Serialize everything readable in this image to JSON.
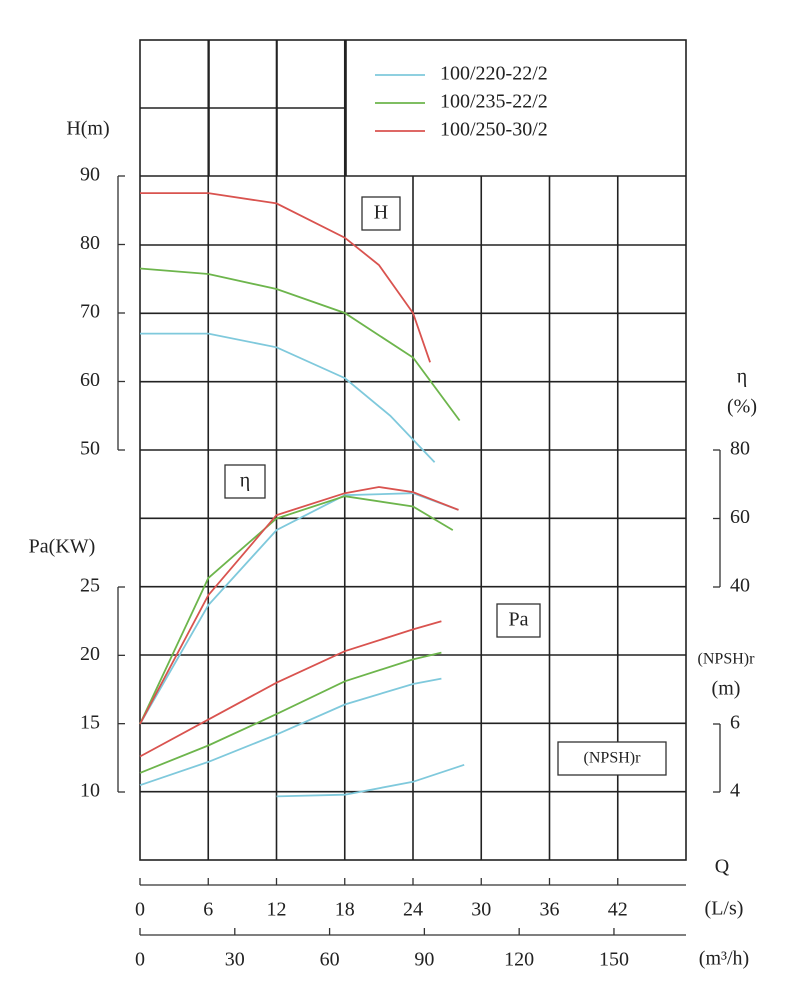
{
  "chart_data": {
    "type": "line",
    "grid": true,
    "x_label": "Q",
    "x_unit": "(L/s)",
    "xlim": [
      0,
      48
    ],
    "xticks": [
      0,
      6,
      12,
      18,
      24,
      30,
      36,
      42
    ],
    "x2_unit": "(m³/h)",
    "x2lim": [
      0,
      172.8
    ],
    "x2ticks": [
      0,
      30,
      60,
      90,
      120,
      150
    ],
    "panels": {
      "H": {
        "label": "H",
        "axis_label": "H(m)",
        "side": "left",
        "ylim": [
          50,
          90
        ],
        "yticks": [
          50,
          60,
          70,
          80,
          90
        ]
      },
      "eta": {
        "label": "η",
        "axis_label": "η",
        "axis_unit": "(%)",
        "side": "right",
        "ylim": [
          40,
          80
        ],
        "yticks": [
          40,
          60,
          80
        ]
      },
      "Pa": {
        "label": "Pa",
        "axis_label": "Pa(KW)",
        "side": "left",
        "ylim": [
          10,
          25
        ],
        "yticks": [
          10,
          15,
          20,
          25
        ]
      },
      "NPSH": {
        "label": "(NPSH)r",
        "axis_label": "(NPSH)r",
        "axis_unit": "(m)",
        "side": "right",
        "ylim": [
          4,
          6
        ],
        "yticks": [
          4,
          6
        ]
      }
    },
    "series": [
      {
        "name": "100/220-22/2",
        "color": "#7fc9dc",
        "curves": {
          "H": {
            "x": [
              0,
              6,
              12,
              18,
              22,
              25.9
            ],
            "values": [
              67,
              67,
              65,
              60.5,
              55,
              48.2
            ]
          },
          "eta": {
            "x": [
              0,
              6,
              12,
              18,
              24,
              28
            ],
            "values": [
              0,
              34.7,
              56.6,
              66.8,
              67.4,
              62.5
            ]
          },
          "Pa": {
            "x": [
              0,
              6,
              12,
              18,
              24,
              26.5
            ],
            "values": [
              10.5,
              12.2,
              14.2,
              16.4,
              17.9,
              18.3
            ]
          },
          "NPSH": {
            "x": [
              12,
              18,
              24,
              28.5
            ],
            "values": [
              3.87,
              3.92,
              4.3,
              4.8
            ]
          }
        }
      },
      {
        "name": "100/235-22/2",
        "color": "#6db54c",
        "curves": {
          "H": {
            "x": [
              0,
              6,
              12,
              18,
              24,
              28.1
            ],
            "values": [
              76.5,
              75.7,
              73.5,
              70,
              63.5,
              54.3
            ]
          },
          "eta": {
            "x": [
              0,
              6,
              12,
              18,
              24,
              27.5
            ],
            "values": [
              0,
              42.6,
              60,
              66.5,
              63.5,
              56.6
            ]
          },
          "Pa": {
            "x": [
              0,
              6,
              12,
              18,
              24,
              26.5
            ],
            "values": [
              11.4,
              13.4,
              15.7,
              18.1,
              19.7,
              20.2
            ]
          }
        }
      },
      {
        "name": "100/250-30/2",
        "color": "#d9534f",
        "curves": {
          "H": {
            "x": [
              0,
              6,
              12,
              18,
              21,
              24,
              25.5
            ],
            "values": [
              87.5,
              87.5,
              86,
              81,
              77,
              70,
              62.8
            ]
          },
          "eta": {
            "x": [
              0,
              6,
              12,
              18,
              21,
              24,
              28
            ],
            "values": [
              0,
              37.6,
              61,
              67.4,
              69.2,
              67.7,
              62.5
            ]
          },
          "Pa": {
            "x": [
              0,
              6,
              12,
              18,
              24,
              26.5
            ],
            "values": [
              12.6,
              15.3,
              18,
              20.3,
              21.9,
              22.5
            ]
          }
        }
      }
    ]
  }
}
